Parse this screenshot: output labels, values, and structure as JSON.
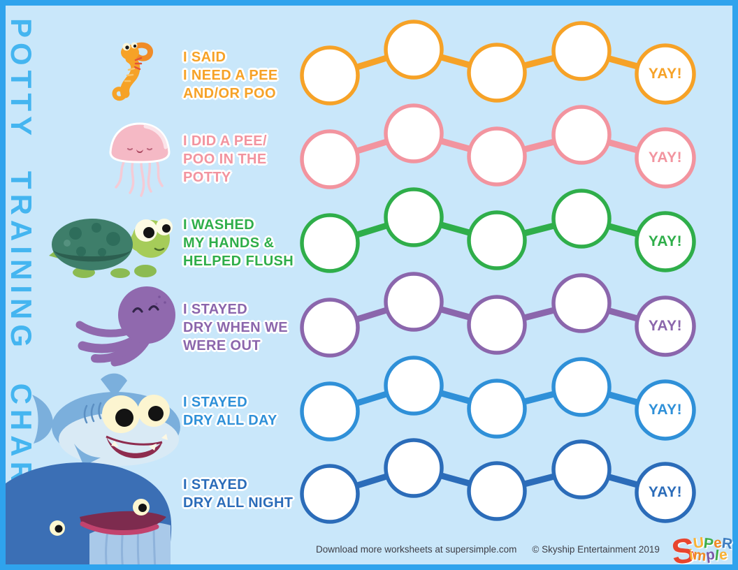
{
  "page": {
    "vertical_title": "POTTY TRAINING CHART",
    "circles_per_row": 5,
    "colors": {
      "frame": "#2FA3ED",
      "background": "#C9E7FA",
      "title": "#44B5F0"
    }
  },
  "rows": [
    {
      "animal": "seahorse",
      "line1": "I SAID",
      "line2": "I NEED A PEE",
      "line3": "AND/OR POO",
      "color": "#F6A227",
      "yay": "YAY!"
    },
    {
      "animal": "jellyfish",
      "line1": "I DID A PEE/",
      "line2": "POO IN THE",
      "line3": "POTTY",
      "color": "#F2949F",
      "yay": "YAY!"
    },
    {
      "animal": "turtle",
      "line1": "I WASHED",
      "line2": "MY HANDS &",
      "line3": "HELPED FLUSH",
      "color": "#2FAE4A",
      "yay": "YAY!"
    },
    {
      "animal": "octopus",
      "line1": "I STAYED",
      "line2": "DRY WHEN WE",
      "line3": "WERE OUT",
      "color": "#8B66AC",
      "yay": "YAY!"
    },
    {
      "animal": "shark",
      "line1": "I STAYED",
      "line2": "DRY ALL DAY",
      "line3": "",
      "color": "#2F90D8",
      "yay": "YAY!"
    },
    {
      "animal": "whale",
      "line1": "I STAYED",
      "line2": "DRY ALL NIGHT",
      "line3": "",
      "color": "#2B6CB9",
      "yay": "YAY!"
    }
  ],
  "footer": {
    "download_text": "Download more worksheets at supersimple.com",
    "copyright_text": "© Skyship Entertainment 2019"
  },
  "logo": {
    "big": "S",
    "top": [
      {
        "ch": "U",
        "color": "#F9B233"
      },
      {
        "ch": "P",
        "color": "#3FAE49"
      },
      {
        "ch": "e",
        "color": "#F08A24"
      },
      {
        "ch": "R",
        "color": "#3E7DC0"
      }
    ],
    "bottom": [
      {
        "ch": "i",
        "color": "#F9B233"
      },
      {
        "ch": "m",
        "color": "#F08A24"
      },
      {
        "ch": "p",
        "color": "#7B5AA6"
      },
      {
        "ch": "l",
        "color": "#3FAE49"
      },
      {
        "ch": "e",
        "color": "#F9B233"
      }
    ]
  }
}
